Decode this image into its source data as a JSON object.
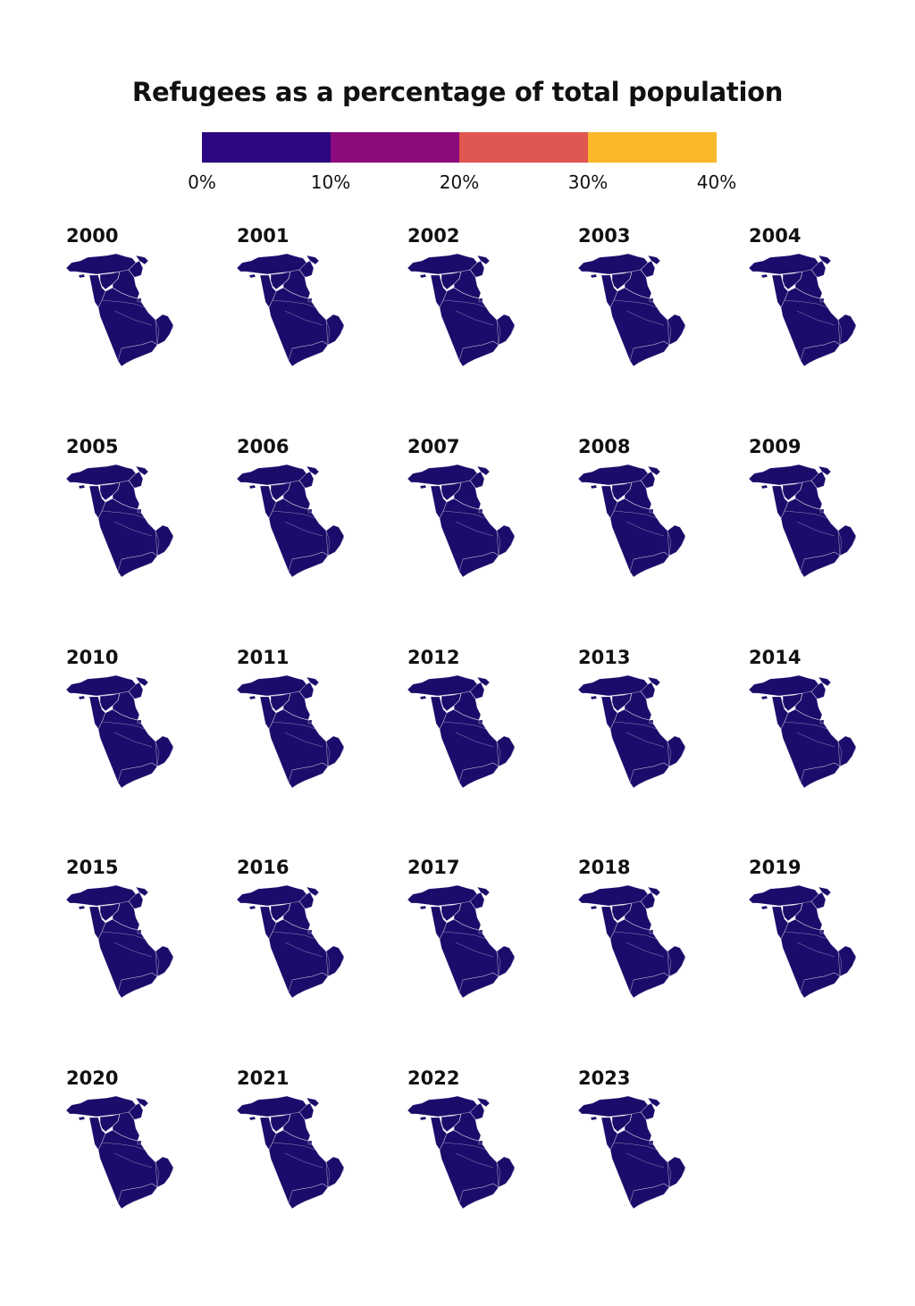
{
  "title": "Refugees as a percentage of total population",
  "colors": {
    "background": "#ffffff",
    "base": "#1b0c6b"
  },
  "legend": {
    "bins": [
      {
        "from": 0,
        "to": 10,
        "color": "#2c0781"
      },
      {
        "from": 10,
        "to": 20,
        "color": "#8c0a7c"
      },
      {
        "from": 20,
        "to": 30,
        "color": "#e05650"
      },
      {
        "from": 30,
        "to": 40,
        "color": "#f8b829"
      }
    ],
    "ticks": [
      "0%",
      "10%",
      "20%",
      "30%",
      "40%"
    ]
  },
  "chart_data": {
    "type": "choropleth-small-multiples",
    "title": "Refugees as a percentage of total population",
    "unit": "%",
    "scale_range": [
      0,
      40
    ],
    "years": [
      {
        "year": "2000",
        "highlights": [
          {
            "region": "iraq",
            "color": "#2a0880"
          },
          {
            "region": "northeast",
            "color": "#5a0a8c"
          }
        ]
      },
      {
        "year": "2001",
        "highlights": [
          {
            "region": "iraq",
            "color": "#22097a"
          }
        ]
      },
      {
        "year": "2002",
        "highlights": [
          {
            "region": "iraq",
            "color": "#22097a"
          },
          {
            "region": "northeast",
            "color": "#4a0a8a"
          }
        ]
      },
      {
        "year": "2003",
        "highlights": [
          {
            "region": "iraq",
            "color": "#240a7c"
          },
          {
            "region": "northeast",
            "color": "#36098a"
          }
        ]
      },
      {
        "year": "2004",
        "highlights": []
      },
      {
        "year": "2005",
        "highlights": [
          {
            "region": "iraq",
            "color": "#220979"
          },
          {
            "region": "northeast",
            "color": "#52098c"
          }
        ]
      },
      {
        "year": "2006",
        "highlights": [
          {
            "region": "iraq",
            "color": "#3c0a88"
          }
        ]
      },
      {
        "year": "2007",
        "highlights": [
          {
            "region": "iraq",
            "color": "#560a92"
          }
        ]
      },
      {
        "year": "2008",
        "highlights": [
          {
            "region": "iraq",
            "color": "#4f0a90"
          }
        ]
      },
      {
        "year": "2009",
        "highlights": [
          {
            "region": "iraq",
            "color": "#460a8e"
          }
        ]
      },
      {
        "year": "2010",
        "highlights": [
          {
            "region": "iraq",
            "color": "#420a8c"
          }
        ]
      },
      {
        "year": "2011",
        "highlights": [
          {
            "region": "iraq",
            "color": "#36098a"
          }
        ]
      },
      {
        "year": "2012",
        "highlights": [
          {
            "region": "iraq",
            "color": "#2c0984"
          },
          {
            "region": "syria",
            "color": "#2c0984"
          }
        ]
      },
      {
        "year": "2013",
        "highlights": [
          {
            "region": "syria",
            "color": "#7a0b8a"
          }
        ]
      },
      {
        "year": "2014",
        "highlights": [
          {
            "region": "syria",
            "color": "#c23a6a"
          }
        ]
      },
      {
        "year": "2015",
        "highlights": [
          {
            "region": "syria",
            "color": "#d9534f"
          }
        ]
      },
      {
        "year": "2016",
        "highlights": [
          {
            "region": "syria",
            "color": "#ec7c42"
          }
        ]
      },
      {
        "year": "2017",
        "highlights": [
          {
            "region": "syria",
            "color": "#f6a735"
          }
        ]
      },
      {
        "year": "2018",
        "highlights": [
          {
            "region": "syria",
            "color": "#f8b22f"
          }
        ]
      },
      {
        "year": "2019",
        "highlights": [
          {
            "region": "syria",
            "color": "#f7a83a"
          }
        ]
      },
      {
        "year": "2020",
        "highlights": [
          {
            "region": "syria",
            "color": "#f5a23b"
          }
        ]
      },
      {
        "year": "2021",
        "highlights": [
          {
            "region": "syria",
            "color": "#f59b3d"
          }
        ]
      },
      {
        "year": "2022",
        "highlights": [
          {
            "region": "syria",
            "color": "#ee8744"
          }
        ]
      },
      {
        "year": "2023",
        "highlights": [
          {
            "region": "syria",
            "color": "#e8744c"
          }
        ]
      }
    ]
  }
}
